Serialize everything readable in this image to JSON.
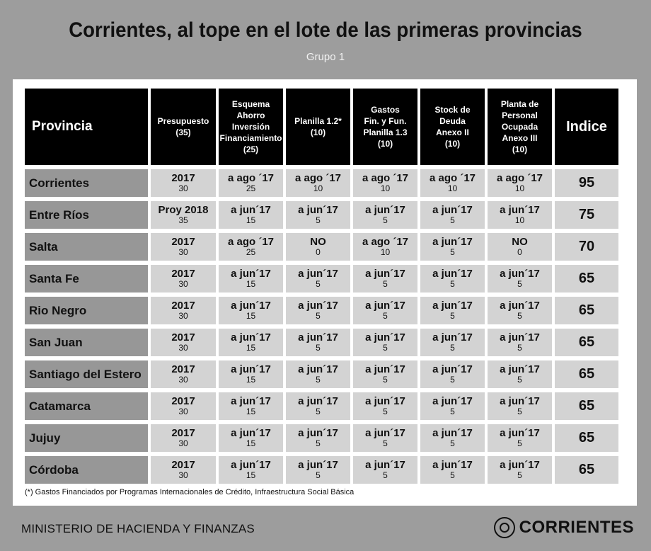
{
  "header": {
    "title": "Corrientes, al tope en el lote de las primeras provincias",
    "subtitle": "Grupo 1"
  },
  "table": {
    "columns": [
      {
        "lines": [
          "Provincia"
        ]
      },
      {
        "lines": [
          "Presupuesto",
          "(35)"
        ]
      },
      {
        "lines": [
          "Esquema",
          "Ahorro",
          "Inversión",
          "Financiamiento",
          "(25)"
        ]
      },
      {
        "lines": [
          "Planilla 1.2*",
          "(10)"
        ]
      },
      {
        "lines": [
          "Gastos",
          "Fin. y Fun.",
          "Planilla 1.3",
          "(10)"
        ]
      },
      {
        "lines": [
          "Stock de",
          "Deuda",
          "Anexo II",
          "(10)"
        ]
      },
      {
        "lines": [
          "Planta de",
          "Personal",
          "Ocupada",
          "Anexo III",
          "(10)"
        ]
      },
      {
        "lines": [
          "Indice"
        ]
      }
    ],
    "rows": [
      {
        "province": "Corrientes",
        "cells": [
          [
            "2017",
            "30"
          ],
          [
            "a ago ´17",
            "25"
          ],
          [
            "a ago ´17",
            "10"
          ],
          [
            "a ago ´17",
            "10"
          ],
          [
            "a ago ´17",
            "10"
          ],
          [
            "a ago ´17",
            "10"
          ]
        ],
        "index": "95"
      },
      {
        "province": "Entre Ríos",
        "cells": [
          [
            "Proy 2018",
            "35"
          ],
          [
            "a jun´17",
            "15"
          ],
          [
            "a jun´17",
            "5"
          ],
          [
            "a jun´17",
            "5"
          ],
          [
            "a jun´17",
            "5"
          ],
          [
            "a jun´17",
            "10"
          ]
        ],
        "index": "75"
      },
      {
        "province": "Salta",
        "cells": [
          [
            "2017",
            "30"
          ],
          [
            "a ago ´17",
            "25"
          ],
          [
            "NO",
            "0"
          ],
          [
            "a ago ´17",
            "10"
          ],
          [
            "a jun´17",
            "5"
          ],
          [
            "NO",
            "0"
          ]
        ],
        "index": "70"
      },
      {
        "province": "Santa Fe",
        "cells": [
          [
            "2017",
            "30"
          ],
          [
            "a jun´17",
            "15"
          ],
          [
            "a jun´17",
            "5"
          ],
          [
            "a jun´17",
            "5"
          ],
          [
            "a jun´17",
            "5"
          ],
          [
            "a jun´17",
            "5"
          ]
        ],
        "index": "65"
      },
      {
        "province": "Rio Negro",
        "cells": [
          [
            "2017",
            "30"
          ],
          [
            "a jun´17",
            "15"
          ],
          [
            "a jun´17",
            "5"
          ],
          [
            "a jun´17",
            "5"
          ],
          [
            "a jun´17",
            "5"
          ],
          [
            "a jun´17",
            "5"
          ]
        ],
        "index": "65"
      },
      {
        "province": "San Juan",
        "cells": [
          [
            "2017",
            "30"
          ],
          [
            "a jun´17",
            "15"
          ],
          [
            "a jun´17",
            "5"
          ],
          [
            "a jun´17",
            "5"
          ],
          [
            "a jun´17",
            "5"
          ],
          [
            "a jun´17",
            "5"
          ]
        ],
        "index": "65"
      },
      {
        "province": "Santiago del Estero",
        "cells": [
          [
            "2017",
            "30"
          ],
          [
            "a jun´17",
            "15"
          ],
          [
            "a jun´17",
            "5"
          ],
          [
            "a jun´17",
            "5"
          ],
          [
            "a jun´17",
            "5"
          ],
          [
            "a jun´17",
            "5"
          ]
        ],
        "index": "65"
      },
      {
        "province": "Catamarca",
        "cells": [
          [
            "2017",
            "30"
          ],
          [
            "a jun´17",
            "15"
          ],
          [
            "a jun´17",
            "5"
          ],
          [
            "a jun´17",
            "5"
          ],
          [
            "a jun´17",
            "5"
          ],
          [
            "a jun´17",
            "5"
          ]
        ],
        "index": "65"
      },
      {
        "province": "Jujuy",
        "cells": [
          [
            "2017",
            "30"
          ],
          [
            "a jun´17",
            "15"
          ],
          [
            "a jun´17",
            "5"
          ],
          [
            "a jun´17",
            "5"
          ],
          [
            "a jun´17",
            "5"
          ],
          [
            "a jun´17",
            "5"
          ]
        ],
        "index": "65"
      },
      {
        "province": "Córdoba",
        "cells": [
          [
            "2017",
            "30"
          ],
          [
            "a jun´17",
            "15"
          ],
          [
            "a jun´17",
            "5"
          ],
          [
            "a jun´17",
            "5"
          ],
          [
            "a jun´17",
            "5"
          ],
          [
            "a jun´17",
            "5"
          ]
        ],
        "index": "65"
      }
    ]
  },
  "footnote": "(*) Gastos Financiados por Programas Internacionales de Crédito, Infraestructura Social Básica",
  "footer": {
    "ministry": "MINISTERIO DE HACIENDA Y FINANZAS",
    "brand": "CORRIENTES",
    "seal_icon": "provincial-seal-icon"
  }
}
